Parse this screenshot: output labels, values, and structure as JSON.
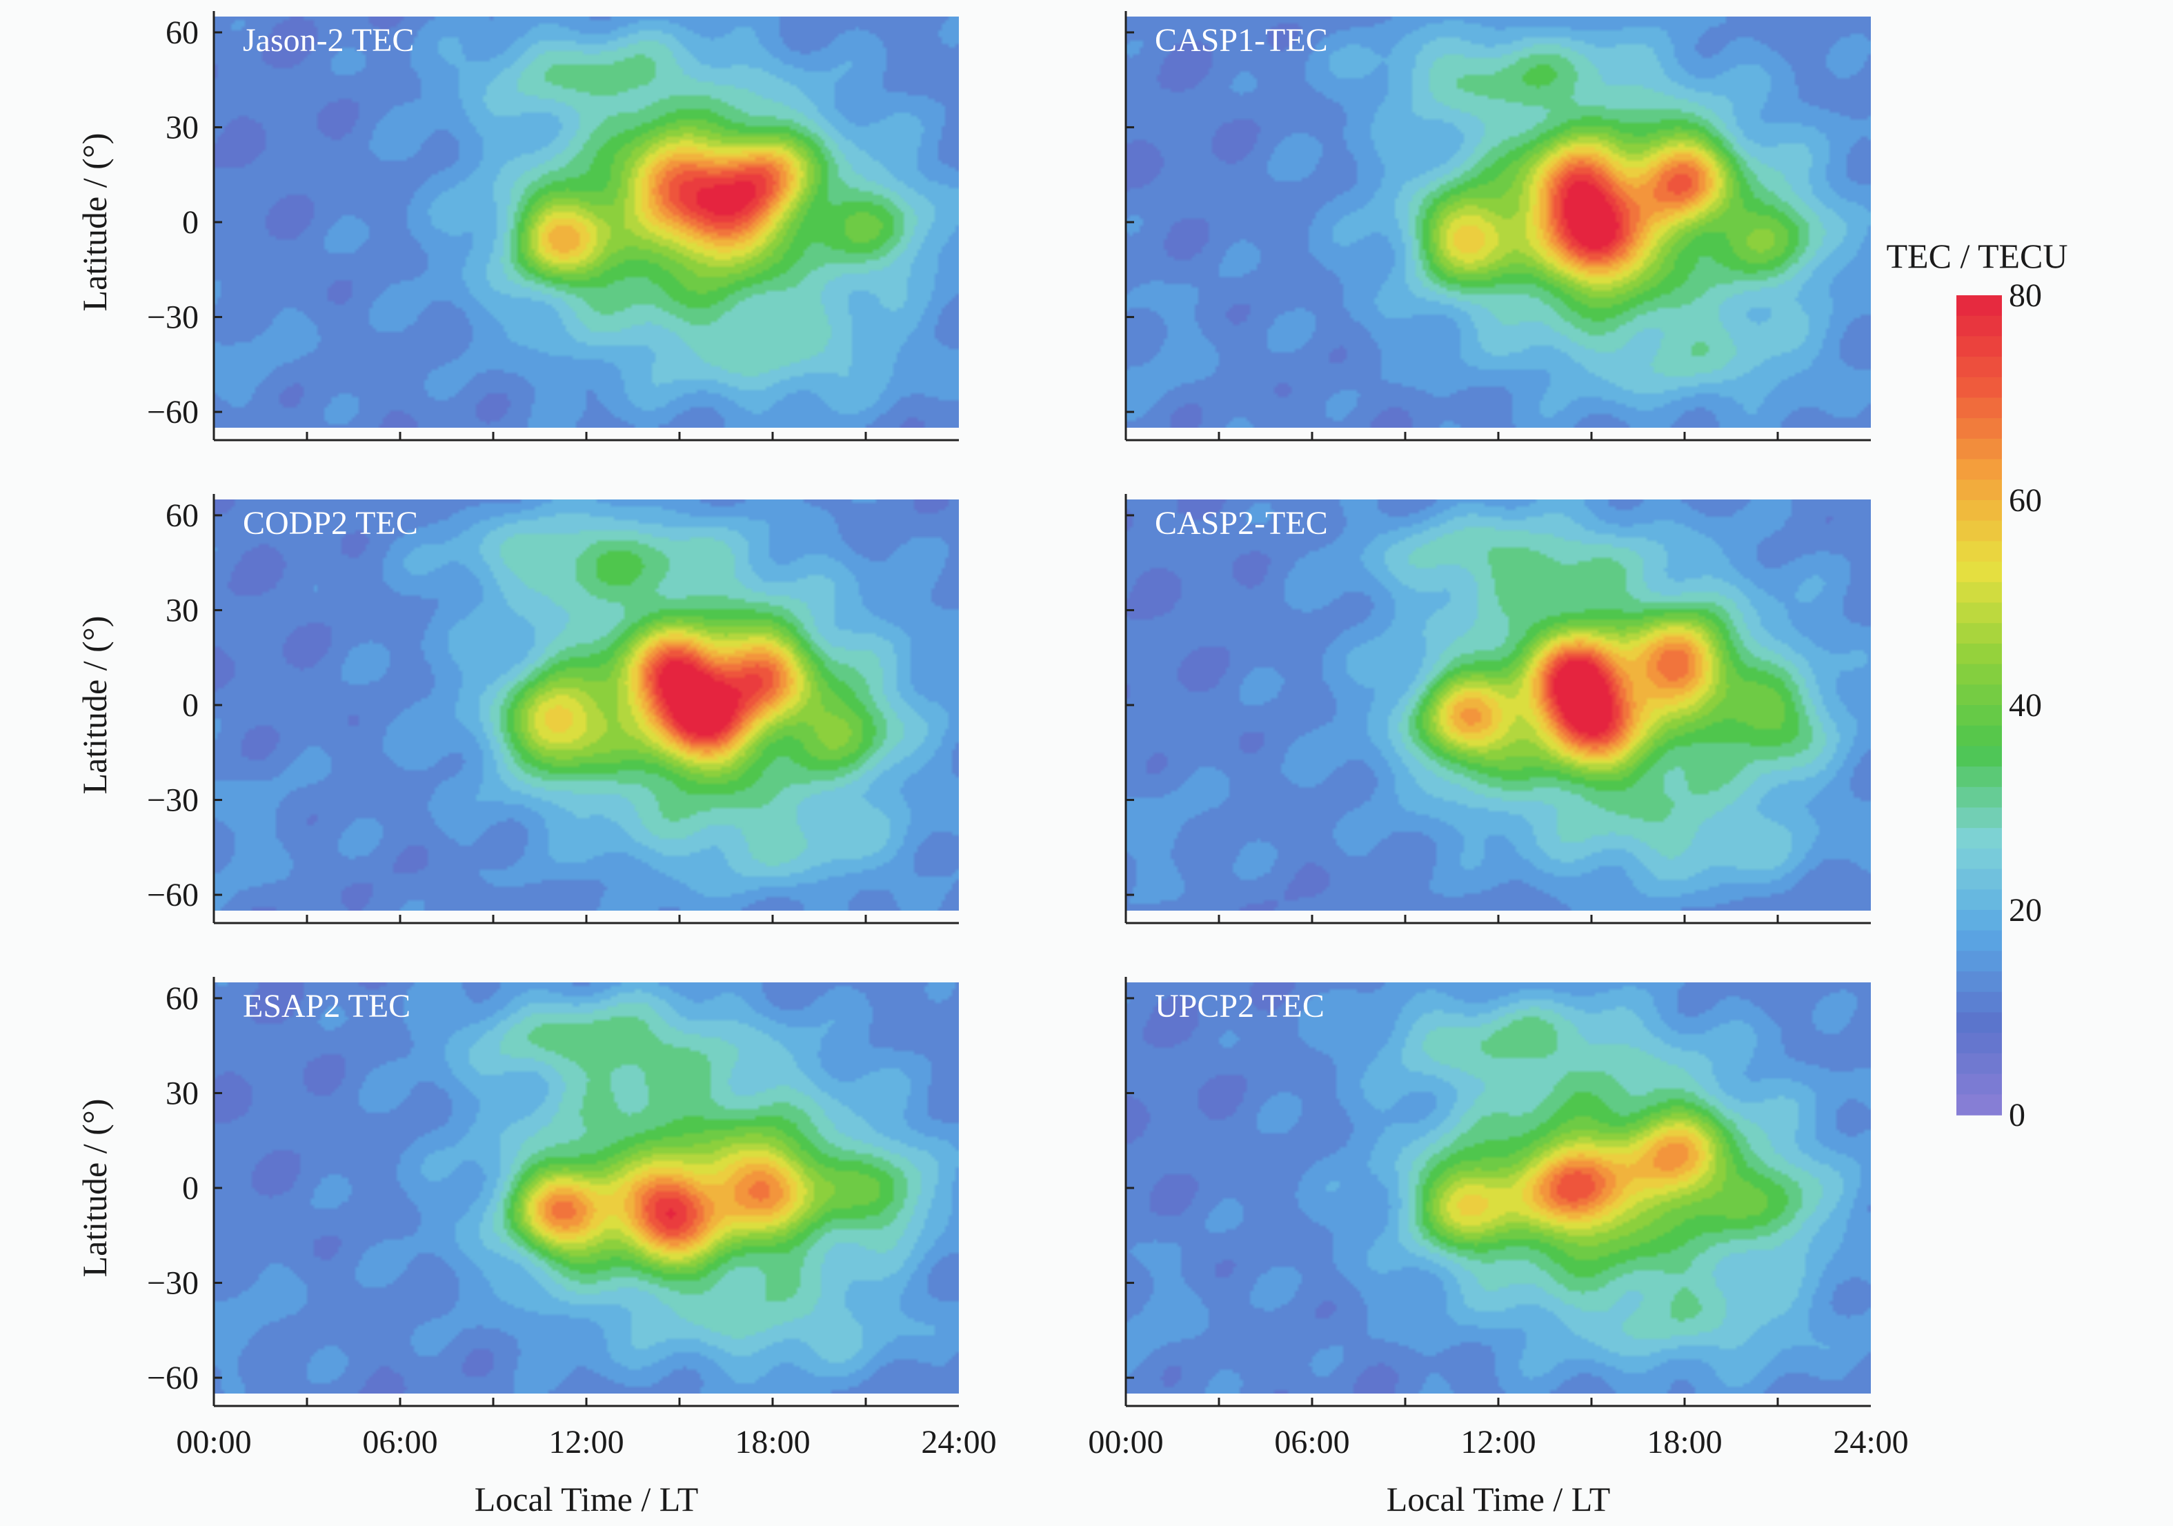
{
  "chart_data": {
    "type": "heatmap",
    "layout": "3 rows x 2 columns of latitude vs local-time maps",
    "panels": [
      {
        "title": "Jason-2 TEC",
        "peaks": [
          [
            11.2,
            -5,
            64
          ],
          [
            14.8,
            15,
            62
          ],
          [
            16.3,
            2,
            63
          ],
          [
            17.8,
            15,
            66
          ],
          [
            21.5,
            -2,
            48
          ]
        ],
        "north_tongue": 30
      },
      {
        "title": "CASP1-TEC",
        "peaks": [
          [
            11.0,
            -5,
            63
          ],
          [
            14.5,
            12,
            70
          ],
          [
            15.2,
            -6,
            72
          ],
          [
            17.9,
            14,
            70
          ],
          [
            21.0,
            -5,
            50
          ]
        ],
        "north_tongue": 32
      },
      {
        "title": "CODP2 TEC",
        "peaks": [
          [
            11.0,
            -6,
            64
          ],
          [
            14.8,
            10,
            70
          ],
          [
            15.8,
            -5,
            71
          ],
          [
            17.7,
            10,
            66
          ],
          [
            20.5,
            -8,
            50
          ]
        ],
        "north_tongue": 35
      },
      {
        "title": "CASP2-TEC",
        "peaks": [
          [
            11.0,
            -5,
            68
          ],
          [
            14.5,
            10,
            70
          ],
          [
            15.0,
            -5,
            70
          ],
          [
            17.9,
            14,
            68
          ],
          [
            21.0,
            -5,
            50
          ]
        ],
        "north_tongue": 32
      },
      {
        "title": "ESAP2 TEC",
        "peaks": [
          [
            11.2,
            -8,
            72
          ],
          [
            14.7,
            -8,
            74
          ],
          [
            17.9,
            0,
            64
          ],
          [
            21.5,
            -2,
            50
          ]
        ],
        "north_tongue": 35
      },
      {
        "title": "UPCP2 TEC",
        "peaks": [
          [
            11.0,
            -5,
            62
          ],
          [
            14.5,
            0,
            68
          ],
          [
            17.8,
            10,
            62
          ],
          [
            21.0,
            -5,
            46
          ]
        ],
        "north_tongue": 30
      }
    ],
    "xlabel": "Local Time / LT",
    "ylabel": "Latitude / (°)",
    "x_ticks": [
      "00:00",
      "06:00",
      "12:00",
      "18:00",
      "24:00"
    ],
    "x_tick_values": [
      0,
      6,
      12,
      18,
      24
    ],
    "y_ticks": [
      "60",
      "30",
      "0",
      "−30",
      "−60"
    ],
    "y_tick_values": [
      60,
      30,
      0,
      -30,
      -60
    ],
    "xlim": [
      0,
      24
    ],
    "ylim": [
      -65,
      65
    ],
    "colorbar": {
      "label": "TEC / TECU",
      "ticks": [
        "80",
        "60",
        "40",
        "20",
        "0"
      ],
      "tick_values": [
        80,
        60,
        40,
        20,
        0
      ],
      "range": [
        0,
        80
      ],
      "colormap": [
        "#8c7fd6",
        "#5b74cc",
        "#5aa8e4",
        "#7fd3d8",
        "#4cc54e",
        "#8fd13c",
        "#e8e040",
        "#f4a43c",
        "#ef5a3c",
        "#e5243f"
      ]
    },
    "legend": "right"
  }
}
